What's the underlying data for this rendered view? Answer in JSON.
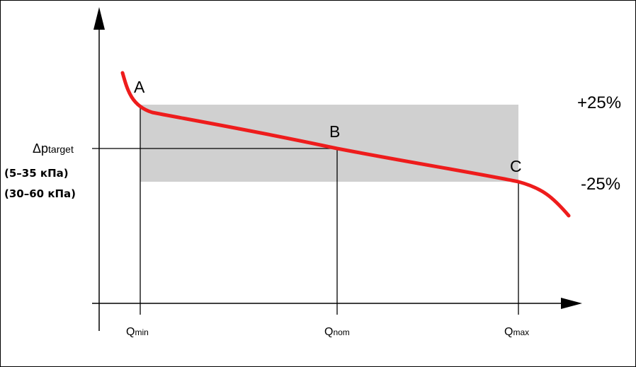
{
  "diagram": {
    "points": {
      "a": "A",
      "b": "B",
      "c": "C"
    },
    "band": {
      "upper": "+25%",
      "lower": "-25%",
      "color": "#d0d0d0"
    },
    "curve_color": "#ee1c1c",
    "y_axis": {
      "symbol": "Δp",
      "subscript": "target",
      "ranges": [
        "(5–35 кПа)",
        "(30–60 кПа)"
      ]
    },
    "x_axis": {
      "q_min": {
        "main": "Q",
        "sub": "min"
      },
      "q_nom": {
        "main": "Q",
        "sub": "nom"
      },
      "q_max": {
        "main": "Q",
        "sub": "max"
      }
    }
  }
}
